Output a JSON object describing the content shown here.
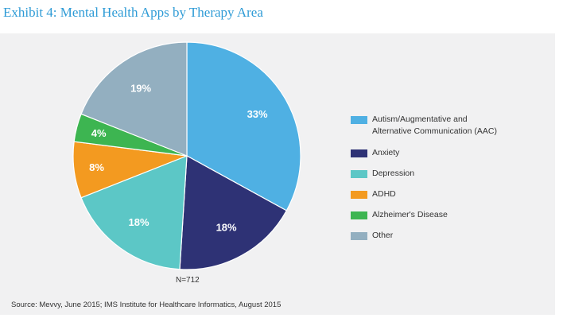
{
  "title": "Exhibit 4: Mental Health Apps by Therapy Area",
  "colors": {
    "title": "#2e9bd6",
    "panel_background": "#f1f1f2"
  },
  "chart_data": {
    "type": "pie",
    "title": "",
    "slices": [
      {
        "label": "Autism/Augmentative and Alternative Communication (AAC)",
        "value": 33,
        "display": "33%",
        "color": "#4fb0e3"
      },
      {
        "label": "Anxiety",
        "value": 18,
        "display": "18%",
        "color": "#2e3275"
      },
      {
        "label": "Depression",
        "value": 18,
        "display": "18%",
        "color": "#5cc7c6"
      },
      {
        "label": "ADHD",
        "value": 8,
        "display": "8%",
        "color": "#f39a20"
      },
      {
        "label": "Alzheimer's Disease",
        "value": 4,
        "display": "4%",
        "color": "#3db551"
      },
      {
        "label": "Other",
        "value": 19,
        "display": "19%",
        "color": "#93afc0"
      }
    ],
    "start_angle_deg": 0,
    "direction": "clockwise",
    "legend_position": "right"
  },
  "legend": {
    "items": [
      {
        "lines": [
          "Autism/Augmentative and",
          "Alternative Communication (AAC)"
        ],
        "color": "#4fb0e3"
      },
      {
        "lines": [
          "Anxiety"
        ],
        "color": "#2e3275"
      },
      {
        "lines": [
          "Depression"
        ],
        "color": "#5cc7c6"
      },
      {
        "lines": [
          "ADHD"
        ],
        "color": "#f39a20"
      },
      {
        "lines": [
          "Alzheimer's Disease"
        ],
        "color": "#3db551"
      },
      {
        "lines": [
          "Other"
        ],
        "color": "#93afc0"
      }
    ]
  },
  "sample_note": "N=712",
  "source": "Source: Mevvy, June 2015; IMS Institute for Healthcare Informatics, August 2015"
}
